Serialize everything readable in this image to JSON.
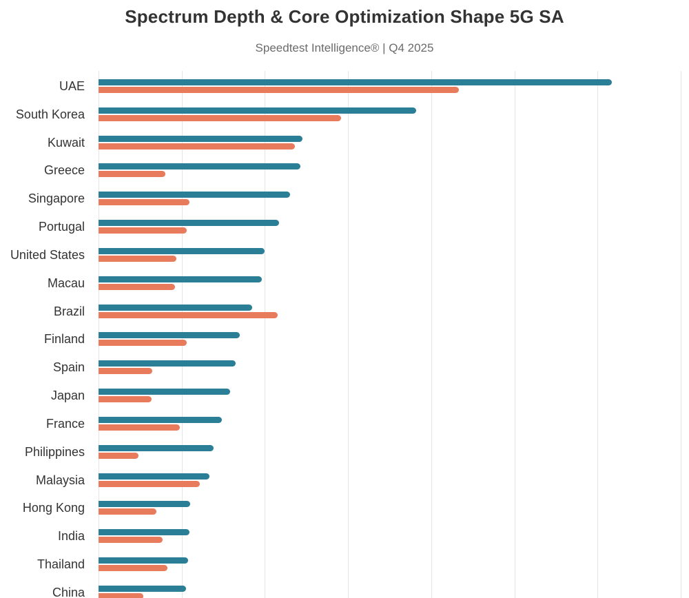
{
  "title": "Spectrum Depth & Core Optimization Shape 5G SA",
  "subtitle": "Speedtest Intelligence® | Q4 2025",
  "colors": {
    "teal_series": "#2a7e95",
    "orange_series": "#e87b5c",
    "gridline": "#e5e5e5",
    "title_text": "#333333",
    "label_text": "#333333",
    "subtitle_text": "#6b6b6b",
    "background": "#ffffff"
  },
  "chart_data": {
    "type": "bar",
    "orientation": "horizontal",
    "title": "Spectrum Depth & Core Optimization Shape 5G SA",
    "subtitle": "Speedtest Intelligence® | Q4 2025",
    "categories": [
      "UAE",
      "South Korea",
      "Kuwait",
      "Greece",
      "Singapore",
      "Portugal",
      "United States",
      "Macau",
      "Brazil",
      "Finland",
      "Spain",
      "Japan",
      "France",
      "Philippines",
      "Malaysia",
      "Hong Kong",
      "India",
      "Thailand",
      "China"
    ],
    "series": [
      {
        "name": "teal-series",
        "color_key": "teal_series",
        "values": [
          617,
          382,
          245,
          243,
          230,
          217,
          200,
          196,
          185,
          170,
          165,
          158,
          148,
          138,
          133,
          110,
          109,
          108,
          105
        ]
      },
      {
        "name": "orange-series",
        "color_key": "orange_series",
        "values": [
          433,
          292,
          236,
          80,
          109,
          106,
          94,
          92,
          215,
          106,
          65,
          64,
          98,
          48,
          122,
          70,
          77,
          83,
          54
        ]
      }
    ],
    "xlabel": "",
    "ylabel": "",
    "xlim": [
      0,
      710
    ],
    "gridline_interval": 100,
    "x_tick_labels_visible": false,
    "grid": "vertical",
    "legend": "none"
  }
}
